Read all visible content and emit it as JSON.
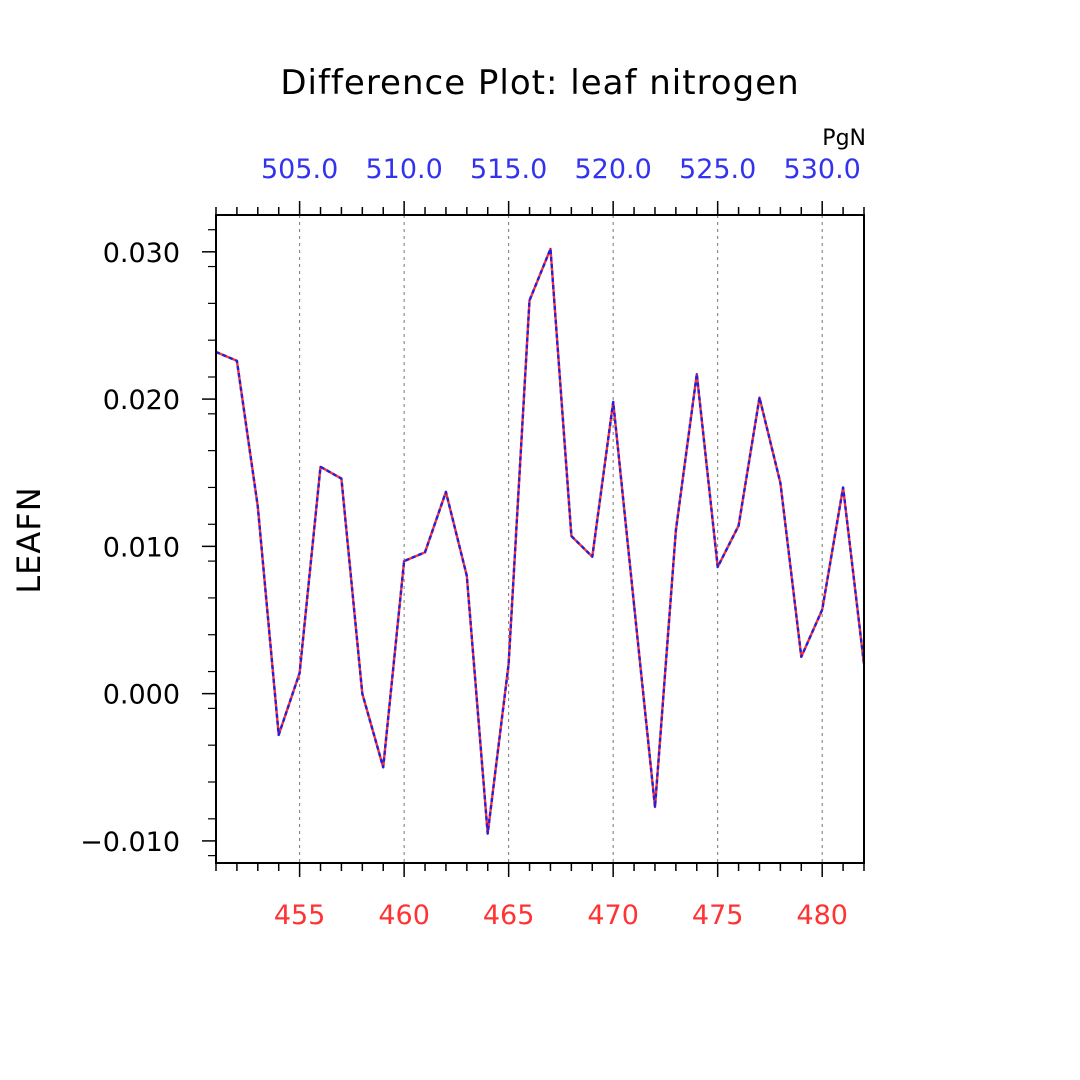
{
  "chart_data": {
    "type": "line",
    "title": "Difference Plot: leaf nitrogen",
    "xlabel": "",
    "ylabel": "LEAFN",
    "top_axis_unit": "PgN",
    "xlim": [
      451,
      482
    ],
    "ylim": [
      -0.0115,
      0.0325
    ],
    "x_ticks": [
      455,
      460,
      465,
      470,
      475,
      480
    ],
    "x_tick_labels": [
      "455",
      "460",
      "465",
      "470",
      "475",
      "480"
    ],
    "y_ticks": [
      -0.01,
      0.0,
      0.01,
      0.02,
      0.03
    ],
    "y_tick_labels": [
      "−0.010",
      "0.000",
      "0.010",
      "0.020",
      "0.030"
    ],
    "top_tick_labels": [
      "505.0",
      "510.0",
      "515.0",
      "520.0",
      "525.0",
      "530.0"
    ],
    "grid": "vertical-dashed",
    "colors": {
      "line_base": "#ff3030",
      "line_overlay": "#2020e0",
      "x_tick_labels": "#ff3333",
      "top_tick_labels": "#3333ee",
      "grid": "#777777"
    },
    "x": [
      451,
      452,
      453,
      454,
      455,
      456,
      457,
      458,
      459,
      460,
      461,
      462,
      463,
      464,
      465,
      466,
      467,
      468,
      469,
      470,
      471,
      472,
      473,
      474,
      475,
      476,
      477,
      478,
      479,
      480,
      481,
      482
    ],
    "series": [
      {
        "values": [
          0.0232,
          0.0226,
          0.0127,
          -0.0028,
          0.0014,
          0.0154,
          0.0146,
          0.0,
          -0.005,
          0.009,
          0.0096,
          0.0137,
          0.008,
          -0.0095,
          0.002,
          0.0267,
          0.0302,
          0.0107,
          0.0093,
          0.0198,
          0.006,
          -0.0077,
          0.0111,
          0.0217,
          0.0086,
          0.0114,
          0.0201,
          0.0143,
          0.0025,
          0.0057,
          0.014,
          0.002
        ]
      }
    ]
  }
}
